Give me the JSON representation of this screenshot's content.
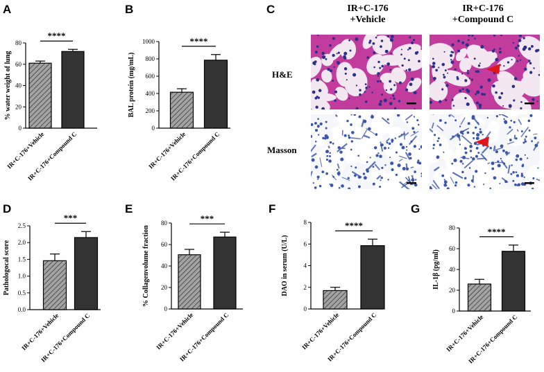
{
  "panels": {
    "A": "A",
    "B": "B",
    "C": "C",
    "D": "D",
    "E": "E",
    "F": "F",
    "G": "G"
  },
  "histology": {
    "col1": [
      "IR+C-176",
      "+Vehicle"
    ],
    "col2": [
      "IR+C-176",
      "+Compound C"
    ],
    "row1": "H&E",
    "row2": "Masson",
    "colors": {
      "he_bg": "#f3e7f1",
      "he_tissue": "#c23c9e",
      "he_nuclei": "#2c2f8a",
      "masson_bg": "#f5f7fb",
      "masson_tissue": "#3b56a8",
      "arrow": "#e0161b"
    }
  },
  "colors": {
    "vehicle_fill": "#a3a3a3",
    "compound_fill": "#333333",
    "axis": "#000000"
  },
  "chart_data": [
    {
      "id": "A",
      "type": "bar",
      "categories": [
        "IR+C-176+Vehicle",
        "IR+C-176+Compound C"
      ],
      "values": [
        61,
        72
      ],
      "errors": [
        2,
        2
      ],
      "ylabel": "% water weight of lung",
      "ylim": [
        0,
        80
      ],
      "yticks": [
        "0",
        "20",
        "40",
        "60",
        "80"
      ],
      "significance": "****",
      "grid": false
    },
    {
      "id": "B",
      "type": "bar",
      "categories": [
        "IR+C-176+Vehicle",
        "IR+C-176+Compound C"
      ],
      "values": [
        415,
        785
      ],
      "errors": [
        40,
        65
      ],
      "ylabel": "BAL protein (mg/mL)",
      "ylim": [
        0,
        1000
      ],
      "yticks": [
        "0",
        "200",
        "400",
        "600",
        "800",
        "1000"
      ],
      "significance": "****",
      "grid": false
    },
    {
      "id": "D",
      "type": "bar",
      "categories": [
        "IR+C-176+Vehicle",
        "IR+C-176+Compound C"
      ],
      "values": [
        1.46,
        2.15
      ],
      "errors": [
        0.2,
        0.18
      ],
      "ylabel": "Pathologocal score",
      "ylim": [
        0,
        2.5
      ],
      "yticks": [
        "0.0",
        "0.5",
        "1.0",
        "1.5",
        "2.0",
        "2.5"
      ],
      "significance": "***",
      "grid": false
    },
    {
      "id": "E",
      "type": "bar",
      "categories": [
        "IR+C-176+Vehicle",
        "IR+C-176+Compound C"
      ],
      "values": [
        50.5,
        67
      ],
      "errors": [
        5,
        4.5
      ],
      "ylabel": "% Collagenvolume fraction",
      "ylim": [
        0,
        80
      ],
      "yticks": [
        "0",
        "20",
        "40",
        "60",
        "80"
      ],
      "significance": "***",
      "grid": false
    },
    {
      "id": "F",
      "type": "bar",
      "categories": [
        "IR+C-176+Vehicle",
        "IR+C-176+Compound C"
      ],
      "values": [
        1.7,
        5.85
      ],
      "errors": [
        0.3,
        0.6
      ],
      "ylabel": "DAO in serum (U/L)",
      "ylim": [
        0,
        8
      ],
      "yticks": [
        "0",
        "2",
        "4",
        "6",
        "8"
      ],
      "significance": "****",
      "grid": false
    },
    {
      "id": "G",
      "type": "bar",
      "categories": [
        "IR+C-176+Vehicle",
        "IR+C-176+Compound C"
      ],
      "values": [
        26,
        57.5
      ],
      "errors": [
        4.5,
        6
      ],
      "ylabel": "IL-1β (pg/ml)",
      "ylim": [
        0,
        80
      ],
      "yticks": [
        "0",
        "20",
        "40",
        "60",
        "80"
      ],
      "significance": "****",
      "grid": false
    }
  ]
}
